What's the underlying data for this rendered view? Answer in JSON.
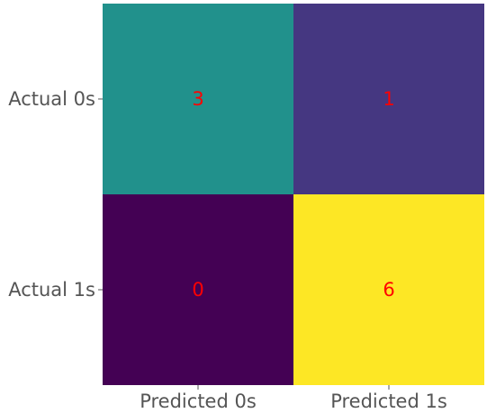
{
  "chart_data": {
    "type": "heatmap",
    "title": "",
    "xlabel": "",
    "ylabel": "",
    "x_categories": [
      "Predicted 0s",
      "Predicted 1s"
    ],
    "y_categories": [
      "Actual 0s",
      "Actual 1s"
    ],
    "values": [
      [
        3,
        1
      ],
      [
        0,
        6
      ]
    ],
    "cell_labels": [
      [
        "3",
        "1"
      ],
      [
        "0",
        "6"
      ]
    ],
    "value_range": [
      0,
      6
    ],
    "colormap": "viridis",
    "cell_colors": [
      [
        "#21918c",
        "#453781"
      ],
      [
        "#440154",
        "#fde725"
      ]
    ],
    "annotation_color": "#ff0000",
    "tick_label_color": "#555555",
    "grid": false,
    "legend": "none"
  }
}
